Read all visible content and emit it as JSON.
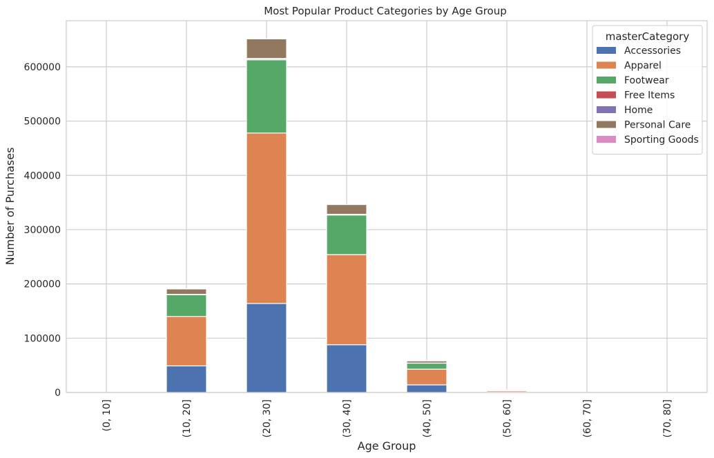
{
  "chart_data": {
    "type": "bar",
    "stacked": true,
    "title": "Most Popular Product Categories by Age Group",
    "xlabel": "Age Group",
    "ylabel": "Number of Purchases",
    "ylim": [
      0,
      685000
    ],
    "yticks": [
      0,
      100000,
      200000,
      300000,
      400000,
      500000,
      600000
    ],
    "grid": true,
    "legend_title": "masterCategory",
    "legend_position": "top-right",
    "categories": [
      "(0, 10]",
      "(10, 20]",
      "(20, 30]",
      "(30, 40]",
      "(40, 50]",
      "(50, 60]",
      "(60, 70]",
      "(70, 80]"
    ],
    "series": [
      {
        "name": "Accessories",
        "color": "#4c72b0",
        "values": [
          0,
          49000,
          164000,
          88000,
          14000,
          1000,
          0,
          0
        ]
      },
      {
        "name": "Apparel",
        "color": "#dd8452",
        "values": [
          0,
          91000,
          314000,
          166000,
          29000,
          2500,
          0,
          0
        ]
      },
      {
        "name": "Footwear",
        "color": "#55a868",
        "values": [
          0,
          40000,
          135000,
          73000,
          11000,
          800,
          0,
          0
        ]
      },
      {
        "name": "Free Items",
        "color": "#c44e52",
        "values": [
          0,
          600,
          2000,
          1000,
          200,
          0,
          0,
          0
        ]
      },
      {
        "name": "Home",
        "color": "#8172b3",
        "values": [
          0,
          200,
          600,
          300,
          100,
          0,
          0,
          0
        ]
      },
      {
        "name": "Personal Care",
        "color": "#937860",
        "values": [
          0,
          10000,
          36000,
          18000,
          4000,
          300,
          0,
          0
        ]
      },
      {
        "name": "Sporting Goods",
        "color": "#da8bc3",
        "values": [
          0,
          100,
          400,
          200,
          50,
          0,
          0,
          0
        ]
      }
    ]
  }
}
